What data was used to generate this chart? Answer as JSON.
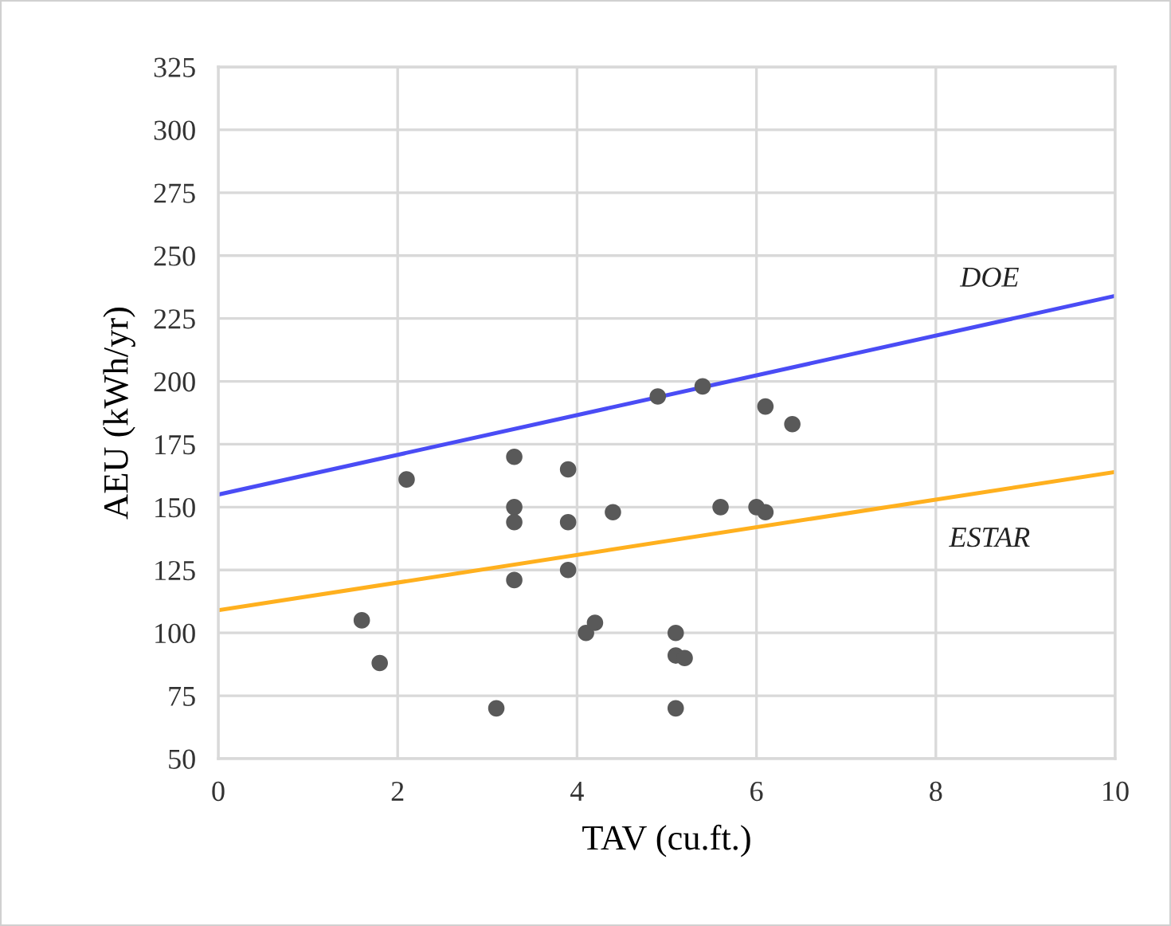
{
  "chart_data": {
    "type": "scatter",
    "xlabel": "TAV (cu.ft.)",
    "ylabel": "AEU (kWh/yr)",
    "xlim": [
      0,
      10
    ],
    "xticks": [
      0,
      2,
      4,
      6,
      8,
      10
    ],
    "ylim": [
      50,
      325
    ],
    "yticks": [
      50,
      75,
      100,
      125,
      150,
      175,
      200,
      225,
      250,
      275,
      300,
      325
    ],
    "grid": true,
    "legend": false,
    "series": [
      {
        "marker": "circle",
        "color": "#595959",
        "x": [
          1.6,
          1.8,
          2.1,
          3.1,
          3.3,
          3.3,
          3.3,
          3.3,
          3.9,
          3.9,
          3.9,
          4.1,
          4.2,
          4.4,
          4.9,
          5.4,
          6.1,
          6.4,
          5.6,
          6.0,
          6.1,
          5.1,
          5.1,
          5.2,
          5.1
        ],
        "values": [
          105,
          88,
          161,
          70,
          170,
          150,
          144,
          121,
          165,
          144,
          125,
          100,
          104,
          148,
          194,
          198,
          190,
          183,
          150,
          150,
          148,
          100,
          91,
          90,
          70
        ]
      },
      {
        "type": "line",
        "marker": "none",
        "name": "DOE",
        "color": "#4a4cf5",
        "x": [
          0,
          10
        ],
        "values": [
          155,
          234
        ]
      },
      {
        "type": "line",
        "marker": "none",
        "name": "ESTAR",
        "color": "#ffb01e",
        "x": [
          0,
          10
        ],
        "values": [
          109,
          164
        ]
      }
    ]
  }
}
